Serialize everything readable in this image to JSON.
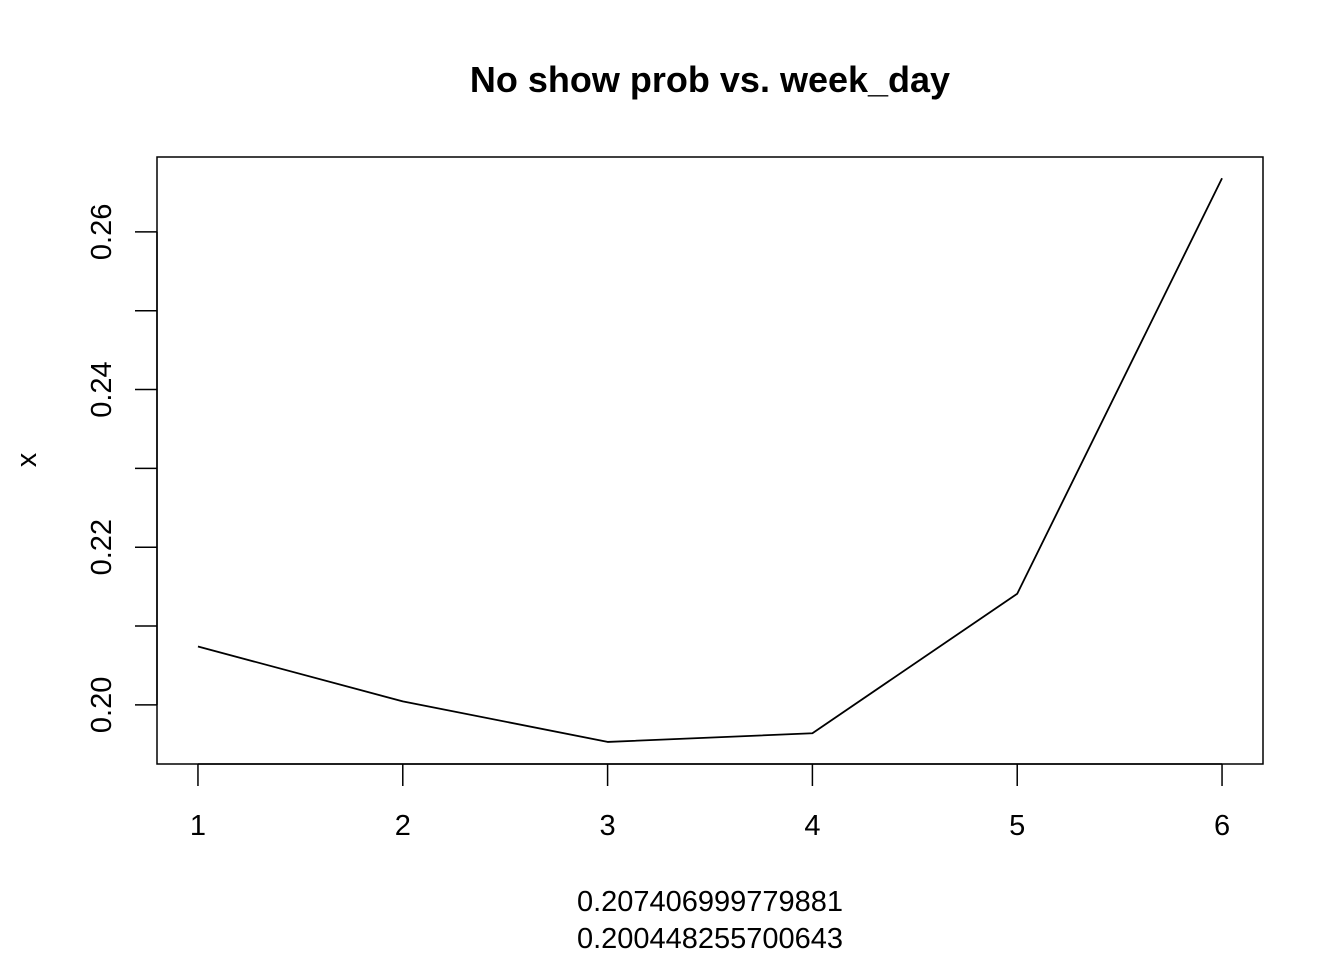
{
  "chart_data": {
    "type": "line",
    "title": "No show prob vs. week_day",
    "xlabel_lines": [
      "0.207406999779881",
      "0.200448255700643"
    ],
    "ylabel": "x",
    "x": [
      1,
      2,
      3,
      4,
      5,
      6
    ],
    "x_ticks": [
      "1",
      "2",
      "3",
      "4",
      "5",
      "6"
    ],
    "y_ticks": [
      "0.20",
      "0.22",
      "0.24",
      "0.26"
    ],
    "y_tick_values": [
      0.2,
      0.21,
      0.22,
      0.23,
      0.24,
      0.25,
      0.26
    ],
    "values": [
      0.207407,
      0.200448,
      0.1953,
      0.1964,
      0.2141,
      0.2668
    ],
    "xlim": [
      0.8,
      6.2
    ],
    "ylim": [
      0.1925,
      0.2695
    ],
    "line_color": "#000000",
    "grid": false,
    "legend": "none"
  }
}
